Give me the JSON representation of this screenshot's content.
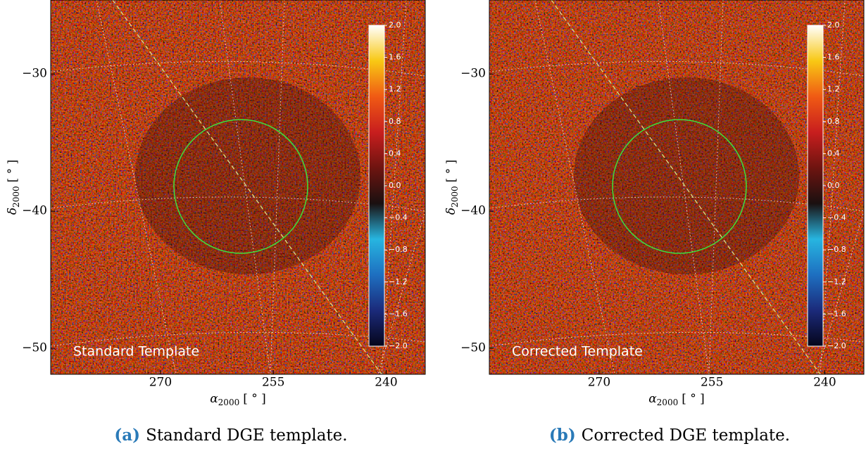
{
  "chart_data": [
    {
      "type": "image",
      "annotation": "Standard Template",
      "xlabel": "α",
      "xlabel_sub": "2000",
      "xlabel_unit": "[ ° ]",
      "ylabel": "δ",
      "ylabel_sub": "2000",
      "ylabel_unit": "[ ° ]",
      "xlim": [
        284.6,
        234.8
      ],
      "xticks": [
        270,
        255,
        240
      ],
      "ylim": [
        -51.9,
        -24.6
      ],
      "yticks": [
        {
          "value": -30,
          "label": "−30"
        },
        {
          "value": -40,
          "label": "−40"
        },
        {
          "value": -50,
          "label": "−50"
        }
      ],
      "clim": [
        -2,
        2
      ],
      "colormap": [
        "#05051a",
        "#1b2a7a",
        "#1e6fc0",
        "#27b5e0",
        "#1a1010",
        "#6e1410",
        "#c81e1e",
        "#f05a14",
        "#f8c814",
        "#ffffff"
      ],
      "cticks": [
        {
          "value": 2,
          "label": "2.0"
        },
        {
          "value": 1.6,
          "label": "1.6"
        },
        {
          "value": 1.2,
          "label": "1.2"
        },
        {
          "value": 0.8,
          "label": "0.8"
        },
        {
          "value": 0.4,
          "label": "0.4"
        },
        {
          "value": 0,
          "label": "0.0"
        },
        {
          "value": -0.4,
          "label": "−0.4"
        },
        {
          "value": -0.8,
          "label": "−0.8"
        },
        {
          "value": -1.2,
          "label": "−1.2"
        },
        {
          "value": -1.6,
          "label": "−1.6"
        },
        {
          "value": -2,
          "label": "−2.0"
        }
      ],
      "caption_label": "(a)",
      "caption": "Standard DGE template."
    },
    {
      "type": "image",
      "annotation": "Corrected Template",
      "xlabel": "α",
      "xlabel_sub": "2000",
      "xlabel_unit": "[ ° ]",
      "ylabel": "δ",
      "ylabel_sub": "2000",
      "ylabel_unit": "[ ° ]",
      "xlim": [
        284.6,
        234.8
      ],
      "xticks": [
        270,
        255,
        240
      ],
      "ylim": [
        -51.9,
        -24.6
      ],
      "yticks": [
        {
          "value": -30,
          "label": "−30"
        },
        {
          "value": -40,
          "label": "−40"
        },
        {
          "value": -50,
          "label": "−50"
        }
      ],
      "clim": [
        -2,
        2
      ],
      "colormap": [
        "#05051a",
        "#1b2a7a",
        "#1e6fc0",
        "#27b5e0",
        "#1a1010",
        "#6e1410",
        "#c81e1e",
        "#f05a14",
        "#f8c814",
        "#ffffff"
      ],
      "cticks": [
        {
          "value": 2,
          "label": "2.0"
        },
        {
          "value": 1.6,
          "label": "1.6"
        },
        {
          "value": 1.2,
          "label": "1.2"
        },
        {
          "value": 0.8,
          "label": "0.8"
        },
        {
          "value": 0.4,
          "label": "0.4"
        },
        {
          "value": 0,
          "label": "0.0"
        },
        {
          "value": -0.4,
          "label": "−0.4"
        },
        {
          "value": -0.8,
          "label": "−0.8"
        },
        {
          "value": -1.2,
          "label": "−1.2"
        },
        {
          "value": -1.6,
          "label": "−1.6"
        },
        {
          "value": -2,
          "label": "−2.0"
        }
      ],
      "caption_label": "(b)",
      "caption": "Corrected DGE template."
    }
  ]
}
